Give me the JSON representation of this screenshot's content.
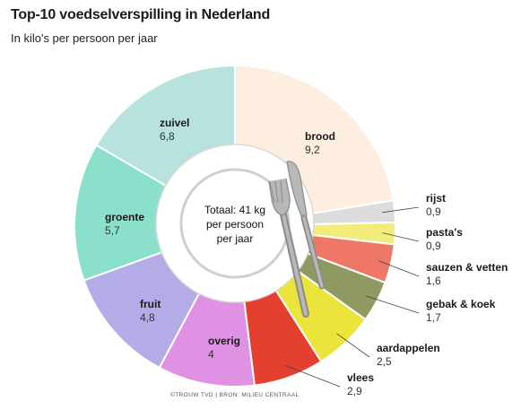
{
  "title": "Top-10 voedselverspilling in Nederland",
  "subtitle": "In kilo's per persoon per jaar",
  "credit": "©TROUW TVD | BRON: MILIEU CENTRAAL",
  "center_label": [
    "Totaal: 41 kg",
    "per persoon",
    "per jaar"
  ],
  "icons": [
    "plate-icon",
    "fork-icon",
    "knife-icon"
  ],
  "chart_data": {
    "type": "pie",
    "style": "donut",
    "total_label": "Totaal: 41 kg",
    "slices": [
      {
        "label": "brood",
        "value": 9.2,
        "value_label": "9,2",
        "color": "#fdeee0"
      },
      {
        "label": "rijst",
        "value": 0.9,
        "value_label": "0,9",
        "color": "#dcdcdc"
      },
      {
        "label": "pasta's",
        "value": 0.9,
        "value_label": "0,9",
        "color": "#f2ec7a"
      },
      {
        "label": "sauzen & vetten",
        "value": 1.6,
        "value_label": "1,6",
        "color": "#ef7768"
      },
      {
        "label": "gebak & koek",
        "value": 1.7,
        "value_label": "1,7",
        "color": "#8e9a62"
      },
      {
        "label": "aardappelen",
        "value": 2.5,
        "value_label": "2,5",
        "color": "#ebe43a"
      },
      {
        "label": "vlees",
        "value": 2.9,
        "value_label": "2,9",
        "color": "#e53f2f"
      },
      {
        "label": "overig",
        "value": 4,
        "value_label": "4",
        "color": "#df91e3"
      },
      {
        "label": "fruit",
        "value": 4.8,
        "value_label": "4,8",
        "color": "#b4ace6"
      },
      {
        "label": "groente",
        "value": 5.7,
        "value_label": "5,7",
        "color": "#8be0cb"
      },
      {
        "label": "zuivel",
        "value": 6.8,
        "value_label": "6,8",
        "color": "#b8e2dd"
      }
    ]
  }
}
